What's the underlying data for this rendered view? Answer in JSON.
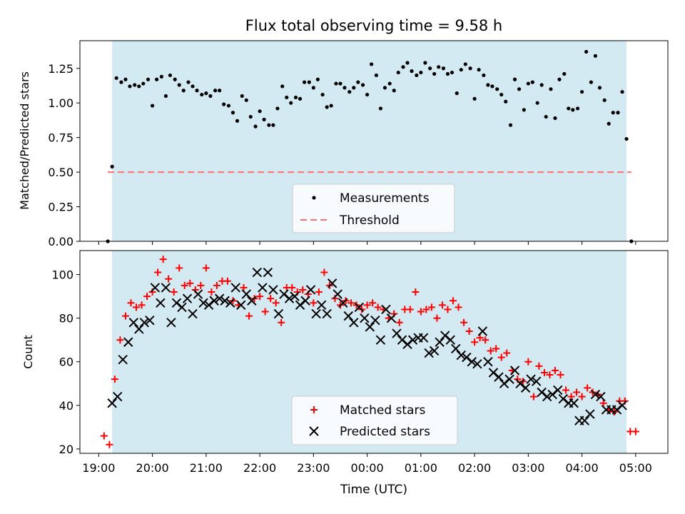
{
  "chart_data": [
    {
      "type": "scatter",
      "title": "Flux total observing time = 9.58 h",
      "xlabel": "",
      "ylabel": "Matched/Predicted stars",
      "x_unit": "hours since 19:00 UTC",
      "xlim": [
        -0.35,
        10.6
      ],
      "ylim": [
        0.0,
        1.45
      ],
      "yticks": [
        "0.00",
        "0.25",
        "0.50",
        "0.75",
        "1.00",
        "1.25"
      ],
      "shaded_span": [
        0.25,
        9.83
      ],
      "threshold": 0.5,
      "threshold_span": [
        0.17,
        9.92
      ],
      "legend": {
        "position": "lower-center",
        "entries": [
          "Measurements",
          "Threshold"
        ]
      },
      "series": [
        {
          "name": "Measurements",
          "color": "#000000",
          "x": [
            0.17,
            0.25,
            0.33,
            0.42,
            0.5,
            0.58,
            0.67,
            0.75,
            0.83,
            0.92,
            1.0,
            1.08,
            1.17,
            1.25,
            1.33,
            1.42,
            1.5,
            1.58,
            1.67,
            1.75,
            1.83,
            1.92,
            2.0,
            2.08,
            2.17,
            2.25,
            2.33,
            2.42,
            2.5,
            2.58,
            2.67,
            2.75,
            2.83,
            2.92,
            3.0,
            3.08,
            3.17,
            3.25,
            3.33,
            3.42,
            3.5,
            3.58,
            3.67,
            3.75,
            3.83,
            3.92,
            4.0,
            4.08,
            4.17,
            4.25,
            4.33,
            4.42,
            4.5,
            4.58,
            4.67,
            4.75,
            4.83,
            4.92,
            5.0,
            5.08,
            5.17,
            5.25,
            5.33,
            5.42,
            5.5,
            5.58,
            5.67,
            5.75,
            5.83,
            5.92,
            6.0,
            6.08,
            6.17,
            6.25,
            6.33,
            6.42,
            6.5,
            6.58,
            6.67,
            6.75,
            6.83,
            6.92,
            7.0,
            7.08,
            7.17,
            7.25,
            7.33,
            7.42,
            7.5,
            7.58,
            7.67,
            7.75,
            7.83,
            7.92,
            8.0,
            8.08,
            8.17,
            8.25,
            8.33,
            8.42,
            8.5,
            8.58,
            8.67,
            8.75,
            8.83,
            8.92,
            9.0,
            9.08,
            9.17,
            9.25,
            9.33,
            9.42,
            9.5,
            9.58,
            9.67,
            9.75,
            9.83,
            9.92
          ],
          "y": [
            0.0,
            0.54,
            1.18,
            1.15,
            1.17,
            1.12,
            1.13,
            1.12,
            1.14,
            1.17,
            0.98,
            1.17,
            1.19,
            1.05,
            1.2,
            1.17,
            1.13,
            1.09,
            1.15,
            1.12,
            1.09,
            1.06,
            1.07,
            1.05,
            1.09,
            1.09,
            0.99,
            0.98,
            0.93,
            0.87,
            1.05,
            1.02,
            0.9,
            0.83,
            0.94,
            0.88,
            0.84,
            0.84,
            0.96,
            1.12,
            1.04,
            1.0,
            1.04,
            1.03,
            1.15,
            1.15,
            1.11,
            1.17,
            1.06,
            0.97,
            0.98,
            1.14,
            1.14,
            1.11,
            1.08,
            1.11,
            1.15,
            1.13,
            1.06,
            1.28,
            1.2,
            0.96,
            1.11,
            1.14,
            1.09,
            1.22,
            1.26,
            1.29,
            1.23,
            1.2,
            1.22,
            1.29,
            1.25,
            1.21,
            1.26,
            1.25,
            1.21,
            1.22,
            1.07,
            1.24,
            1.28,
            1.25,
            1.03,
            1.24,
            1.2,
            1.13,
            1.12,
            1.1,
            1.06,
            1.01,
            0.84,
            1.17,
            1.1,
            0.95,
            1.14,
            1.15,
            1.0,
            1.13,
            0.9,
            1.1,
            0.89,
            1.17,
            1.21,
            0.96,
            0.95,
            0.96,
            1.08,
            1.37,
            1.15,
            1.34,
            1.11,
            1.02,
            0.85,
            0.93,
            0.93,
            1.08,
            0.74,
            0.0
          ]
        }
      ]
    },
    {
      "type": "scatter",
      "title": "",
      "xlabel": "Time (UTC)",
      "ylabel": "Count",
      "x_unit": "hours since 19:00 UTC",
      "xlim": [
        -0.35,
        10.6
      ],
      "ylim": [
        18,
        111
      ],
      "yticks": [
        "20",
        "40",
        "60",
        "80",
        "100"
      ],
      "xtick_labels": [
        "19:00",
        "20:00",
        "21:00",
        "22:00",
        "23:00",
        "00:00",
        "01:00",
        "02:00",
        "03:00",
        "04:00",
        "05:00"
      ],
      "shaded_span": [
        0.25,
        9.83
      ],
      "legend": {
        "position": "lower-center",
        "entries": [
          "Matched stars",
          "Predicted stars"
        ]
      },
      "series": [
        {
          "name": "Matched stars",
          "marker": "plus",
          "color": "#ff0000",
          "x": [
            0.1,
            0.2,
            0.3,
            0.4,
            0.5,
            0.6,
            0.7,
            0.8,
            0.9,
            1.0,
            1.1,
            1.2,
            1.3,
            1.4,
            1.5,
            1.6,
            1.7,
            1.8,
            1.9,
            2.0,
            2.1,
            2.2,
            2.3,
            2.4,
            2.5,
            2.6,
            2.7,
            2.8,
            2.9,
            3.0,
            3.1,
            3.2,
            3.3,
            3.4,
            3.5,
            3.6,
            3.7,
            3.8,
            3.9,
            4.0,
            4.1,
            4.2,
            4.3,
            4.4,
            4.5,
            4.6,
            4.7,
            4.8,
            4.9,
            5.0,
            5.1,
            5.2,
            5.3,
            5.4,
            5.5,
            5.6,
            5.7,
            5.8,
            5.9,
            6.0,
            6.1,
            6.2,
            6.3,
            6.4,
            6.5,
            6.6,
            6.7,
            6.8,
            6.9,
            7.0,
            7.1,
            7.2,
            7.3,
            7.4,
            7.5,
            7.6,
            7.7,
            7.8,
            7.9,
            8.0,
            8.1,
            8.2,
            8.3,
            8.4,
            8.5,
            8.6,
            8.7,
            8.8,
            8.9,
            9.0,
            9.1,
            9.2,
            9.3,
            9.4,
            9.5,
            9.6,
            9.7,
            9.8,
            9.9,
            10.0
          ],
          "y": [
            26,
            22,
            52,
            70,
            81,
            87,
            85,
            86,
            90,
            92,
            101,
            107,
            98,
            92,
            103,
            95,
            96,
            93,
            95,
            103,
            92,
            95,
            97,
            97,
            88,
            86,
            94,
            81,
            89,
            90,
            83,
            89,
            87,
            78,
            94,
            94,
            92,
            93,
            91,
            87,
            92,
            101,
            95,
            89,
            86,
            88,
            87,
            86,
            84,
            86,
            87,
            85,
            84,
            80,
            82,
            78,
            84,
            84,
            92,
            83,
            84,
            85,
            80,
            86,
            84,
            88,
            85,
            78,
            74,
            69,
            71,
            70,
            65,
            66,
            62,
            64,
            56,
            52,
            51,
            60,
            44,
            58,
            55,
            54,
            56,
            54,
            47,
            44,
            46,
            44,
            48,
            46,
            45,
            41,
            38,
            37,
            42,
            42,
            28,
            28
          ]
        },
        {
          "name": "Predicted stars",
          "marker": "x",
          "color": "#000000",
          "x": [
            0.25,
            0.35,
            0.45,
            0.55,
            0.65,
            0.75,
            0.85,
            0.95,
            1.05,
            1.15,
            1.25,
            1.35,
            1.45,
            1.55,
            1.65,
            1.75,
            1.85,
            1.95,
            2.05,
            2.15,
            2.25,
            2.35,
            2.45,
            2.55,
            2.65,
            2.75,
            2.85,
            2.95,
            3.05,
            3.15,
            3.25,
            3.35,
            3.45,
            3.55,
            3.65,
            3.75,
            3.85,
            3.95,
            4.05,
            4.15,
            4.25,
            4.35,
            4.45,
            4.55,
            4.65,
            4.75,
            4.85,
            4.95,
            5.05,
            5.15,
            5.25,
            5.35,
            5.45,
            5.55,
            5.65,
            5.75,
            5.85,
            5.95,
            6.05,
            6.15,
            6.25,
            6.35,
            6.45,
            6.55,
            6.65,
            6.75,
            6.85,
            6.95,
            7.05,
            7.15,
            7.25,
            7.35,
            7.45,
            7.55,
            7.65,
            7.75,
            7.85,
            7.95,
            8.05,
            8.15,
            8.25,
            8.35,
            8.45,
            8.55,
            8.65,
            8.75,
            8.85,
            8.95,
            9.05,
            9.15,
            9.25,
            9.35,
            9.45,
            9.55,
            9.65,
            9.75
          ],
          "y": [
            41,
            44,
            61,
            69,
            78,
            75,
            78,
            79,
            94,
            87,
            94,
            78,
            87,
            85,
            89,
            82,
            91,
            87,
            86,
            88,
            89,
            88,
            87,
            94,
            86,
            91,
            88,
            101,
            94,
            101,
            93,
            82,
            91,
            89,
            90,
            86,
            88,
            93,
            82,
            86,
            82,
            96,
            91,
            87,
            81,
            78,
            85,
            80,
            76,
            79,
            70,
            84,
            80,
            73,
            70,
            68,
            70,
            71,
            71,
            64,
            65,
            69,
            72,
            70,
            66,
            63,
            62,
            60,
            59,
            74,
            60,
            55,
            53,
            50,
            52,
            56,
            50,
            48,
            52,
            51,
            46,
            44,
            45,
            47,
            43,
            41,
            41,
            33,
            33,
            36,
            45,
            44,
            38,
            38,
            38,
            40
          ]
        }
      ]
    }
  ]
}
